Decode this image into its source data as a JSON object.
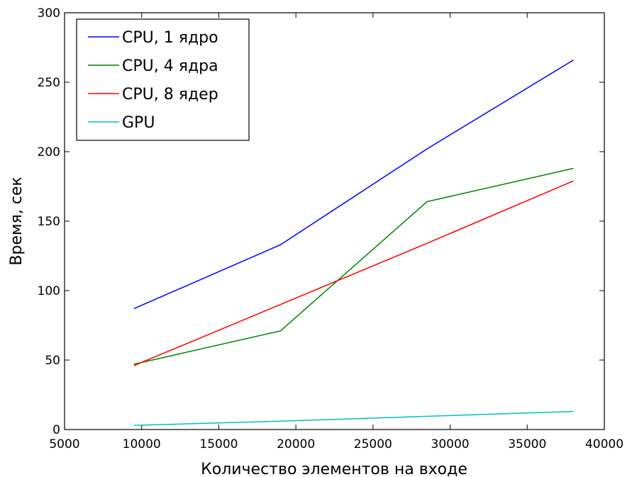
{
  "chart_data": {
    "type": "line",
    "xlabel": "Количество элементов на входе",
    "ylabel": "Время, сек",
    "xlim": [
      5000,
      40000
    ],
    "ylim": [
      0,
      300
    ],
    "xticks": [
      5000,
      10000,
      15000,
      20000,
      25000,
      30000,
      35000,
      40000
    ],
    "yticks": [
      0,
      50,
      100,
      150,
      200,
      250,
      300
    ],
    "x": [
      9500,
      19000,
      28500,
      38000
    ],
    "grid": false,
    "legend_position": "top-left",
    "series": [
      {
        "name": "CPU, 1 ядро",
        "color": "#0000ff",
        "values": [
          87,
          133,
          202,
          266
        ]
      },
      {
        "name": "CPU, 4 ядра",
        "color": "#008000",
        "values": [
          47,
          71,
          164,
          188
        ]
      },
      {
        "name": "CPU, 8 ядер",
        "color": "#ff0000",
        "values": [
          46,
          90,
          134,
          179
        ]
      },
      {
        "name": "GPU",
        "color": "#00bfbf",
        "values": [
          3,
          6,
          9.5,
          13
        ]
      }
    ]
  }
}
